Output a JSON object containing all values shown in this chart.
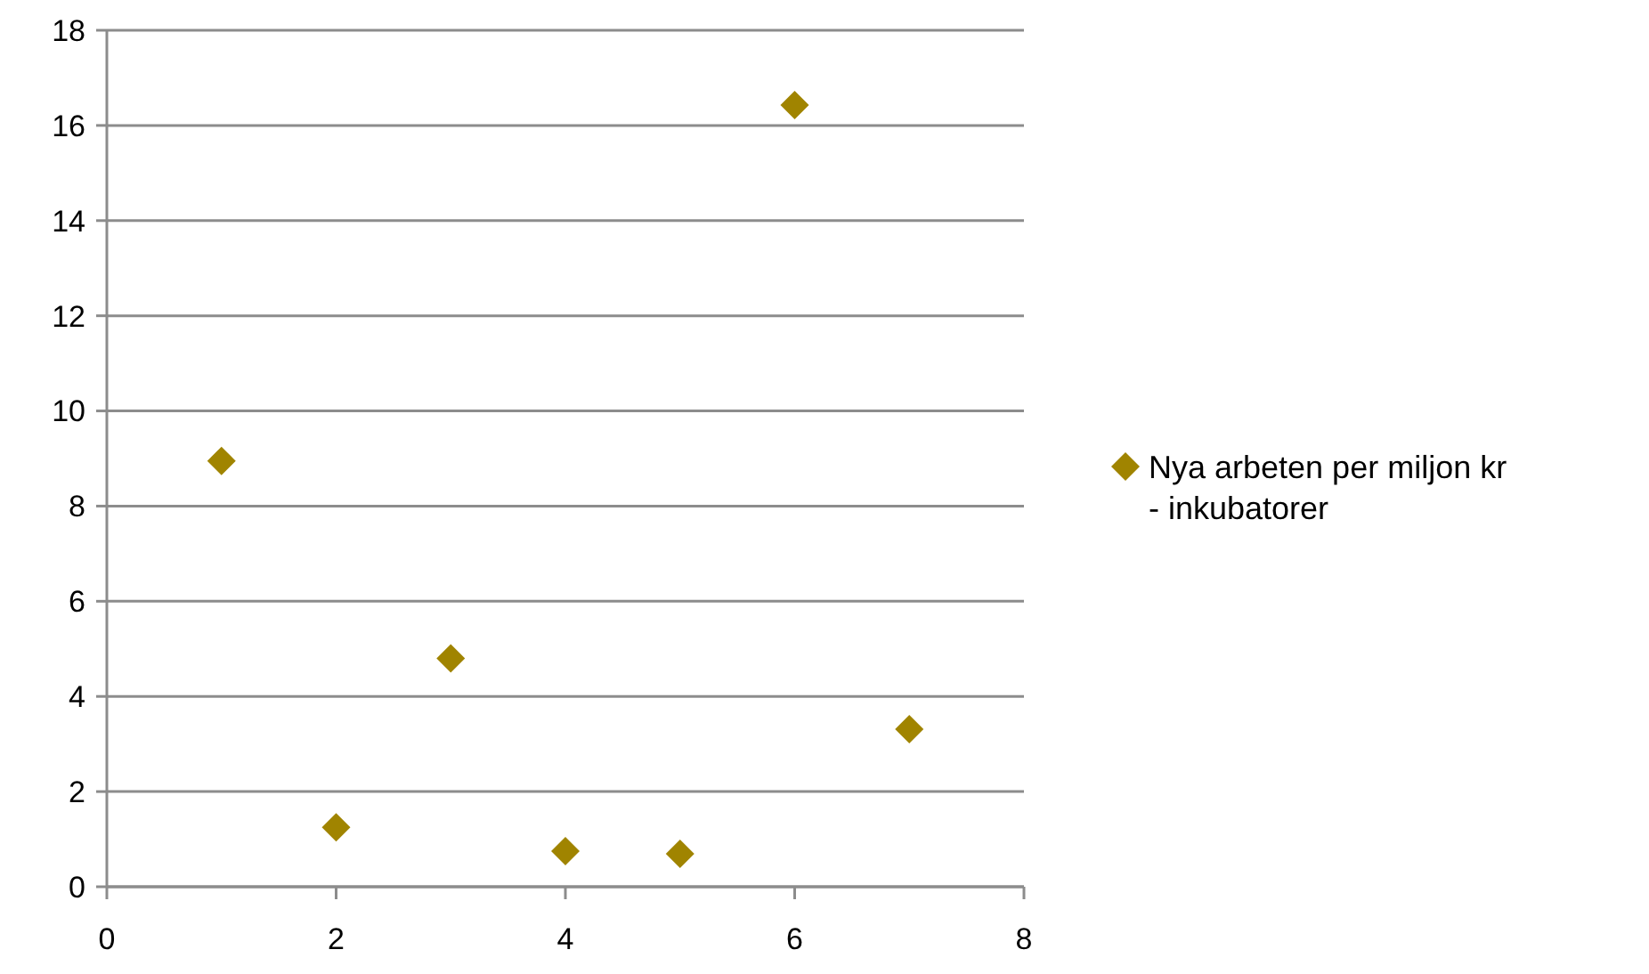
{
  "chart_data": {
    "type": "scatter",
    "series": [
      {
        "name": "Nya arbeten per miljon kr - inkubatorer",
        "color": "#a08400",
        "x": [
          1,
          2,
          3,
          4,
          5,
          6,
          7
        ],
        "values": [
          8.95,
          1.25,
          4.8,
          0.75,
          0.69,
          16.43,
          3.31
        ]
      }
    ],
    "xlim": [
      0,
      8
    ],
    "xticks": [
      0,
      2,
      4,
      6,
      8
    ],
    "ylim": [
      0,
      18
    ],
    "yticks": [
      0,
      2,
      4,
      6,
      8,
      10,
      12,
      14,
      16,
      18
    ],
    "grid": "y",
    "legend": "right",
    "marker": "diamond"
  }
}
